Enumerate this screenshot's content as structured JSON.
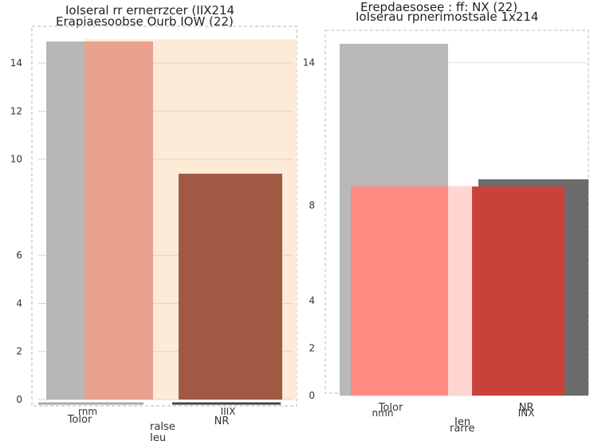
{
  "charts": [
    {
      "title": "IoIseral rr ernerrzcer (IIX214",
      "subtitle": "Erapiaesoobse Ourb IOW (22)",
      "ylabel": "",
      "xlabel": "raIse",
      "xlabel2": "Ieu"
    },
    {
      "title": "Erepdaesosee : ff: NX (22)",
      "subtitle": "IoIserau rpnerimostsaIe 1x214",
      "ylabel": "",
      "xlabel": "rarre",
      "xlabel2": "Ien"
    }
  ],
  "chart_data": [
    {
      "type": "bar",
      "title": "IoIseral rr ernerrzcer (IIX214",
      "categories": [
        "Tolor",
        "NR"
      ],
      "category_sublabels": [
        "rnm",
        "IIIX"
      ],
      "series": [
        {
          "values": [
            14.9,
            0
          ],
          "color": "#b7b7b7"
        },
        {
          "values": [
            14.9,
            0
          ],
          "color": "#eaa28e"
        },
        {
          "values": [
            0,
            9.4
          ],
          "color": "#a05a44"
        }
      ],
      "background_band": {
        "from": 0,
        "to": 15.0,
        "color": "#fdebd8"
      },
      "yticks": [
        0,
        2,
        4,
        6,
        10,
        12,
        14
      ],
      "ylim": [
        0,
        15.3
      ],
      "grid": true,
      "legend": "none"
    },
    {
      "type": "bar",
      "title": "Erepdaesosee : ff: NX (22)",
      "categories": [
        "Tolor",
        "NR"
      ],
      "category_sublabels": [
        "nmn",
        "INX"
      ],
      "series": [
        {
          "values": [
            14.8,
            0
          ],
          "color": "#b9b9b9"
        },
        {
          "values": [
            0,
            9.1
          ],
          "color": "#6b6b6b"
        },
        {
          "values": [
            8.8,
            0
          ],
          "color": "#ff8b82"
        },
        {
          "values": [
            0,
            8.8
          ],
          "color": "#c9423a"
        }
      ],
      "yticks": [
        0,
        2,
        4,
        8,
        14
      ],
      "ylim": [
        0,
        15.3
      ],
      "grid": true,
      "legend": "none"
    }
  ]
}
